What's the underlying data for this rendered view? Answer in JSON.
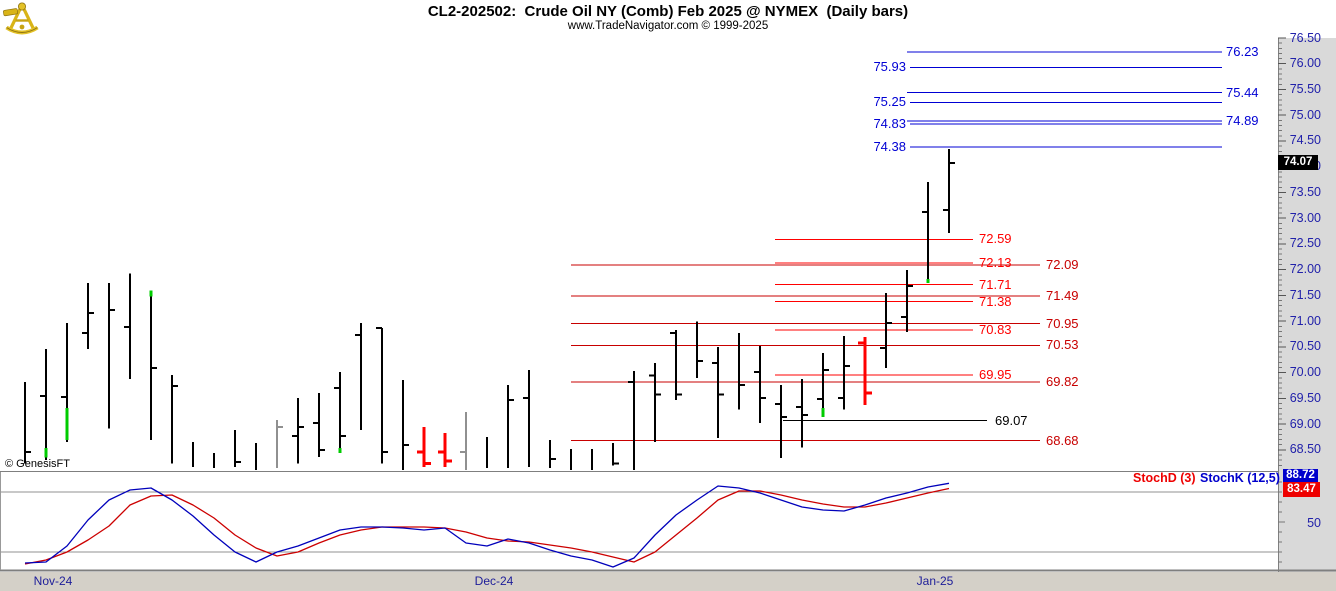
{
  "header": {
    "title": "CL2-202502:  Crude Oil NY (Comb) Feb 2025 @ NYMEX  (Daily bars)",
    "subtitle": "www.TradeNavigator.com © 1999-2025"
  },
  "watermark": "© GenesisFT",
  "logo": "sextant-icon",
  "colors": {
    "blue_level": "#0000d4",
    "red_bright": "#ff0000",
    "red_dark": "#c80000",
    "black_level": "#000000",
    "axis_text": "#2121aa",
    "bar_black": "#000000",
    "bar_red": "#ff0000",
    "bar_gray": "#909090",
    "bar_green": "#00cc00",
    "stoch_k": "#0000bb",
    "stoch_d": "#cc0000",
    "grid": "#909090",
    "border": "#7f7f7f"
  },
  "chart_data": {
    "type": "bar",
    "subtype": "ohlc-daily-bars-with-stochastic",
    "title": "CL2-202502:  Crude Oil NY (Comb) Feb 2025 @ NYMEX  (Daily bars)",
    "price_axis": {
      "ylim": [
        68.08,
        76.5
      ],
      "tick_labels": [
        "76.50",
        "76.00",
        "75.50",
        "75.00",
        "74.50",
        "74.00",
        "73.50",
        "73.00",
        "72.50",
        "72.00",
        "71.50",
        "71.00",
        "70.50",
        "70.00",
        "69.50",
        "69.00",
        "68.50"
      ],
      "minor_step": 0.1,
      "last_price": "74.07",
      "last_price_value": 74.07
    },
    "x_axis": {
      "labels": [
        {
          "text": "Nov-24",
          "x": 53
        },
        {
          "text": "Dec-24",
          "x": 494
        },
        {
          "text": "Jan-25",
          "x": 935
        }
      ]
    },
    "levels": {
      "blue_left": [
        {
          "price": 75.93,
          "label": "75.93"
        },
        {
          "price": 75.25,
          "label": "75.25"
        },
        {
          "price": 74.83,
          "label": "74.83"
        },
        {
          "price": 74.38,
          "label": "74.38"
        }
      ],
      "blue_right": [
        {
          "price": 76.23,
          "label": "76.23"
        },
        {
          "price": 75.44,
          "label": "75.44"
        },
        {
          "price": 74.89,
          "label": "74.89"
        }
      ],
      "red_short": [
        {
          "price": 72.59,
          "label": "72.59"
        },
        {
          "price": 72.13,
          "label": "72.13"
        },
        {
          "price": 71.71,
          "label": "71.71"
        },
        {
          "price": 71.38,
          "label": "71.38"
        },
        {
          "price": 70.83,
          "label": "70.83"
        },
        {
          "price": 69.95,
          "label": "69.95"
        }
      ],
      "red_long": [
        {
          "price": 72.09,
          "label": "72.09"
        },
        {
          "price": 71.49,
          "label": "71.49"
        },
        {
          "price": 70.95,
          "label": "70.95"
        },
        {
          "price": 70.53,
          "label": "70.53"
        },
        {
          "price": 69.82,
          "label": "69.82"
        },
        {
          "price": 68.68,
          "label": "68.68"
        }
      ],
      "black": [
        {
          "price": 69.07,
          "label": "69.07"
        }
      ]
    },
    "bars": [
      {
        "h": 69.82,
        "l": 68.24,
        "c": 68.46
      },
      {
        "h": 70.46,
        "l": 68.3,
        "o": 69.55,
        "g": [
          68.35,
          68.54
        ]
      },
      {
        "h": 70.96,
        "l": 68.65,
        "o": 69.53,
        "g": [
          68.69,
          69.31
        ]
      },
      {
        "h": 71.74,
        "l": 70.46,
        "o": 70.77,
        "c": 71.16
      },
      {
        "h": 71.74,
        "l": 68.92,
        "c": 71.22
      },
      {
        "h": 71.93,
        "l": 69.88,
        "o": 70.89
      },
      {
        "h": 71.6,
        "l": 68.69,
        "c": 70.09,
        "g": [
          71.48,
          71.6
        ]
      },
      {
        "h": 69.95,
        "l": 68.24,
        "c": 69.74
      },
      {
        "h": 68.65,
        "l": 68.17
      },
      {
        "h": 68.44,
        "l": 68.15
      },
      {
        "h": 68.89,
        "l": 68.17,
        "c": 68.26
      },
      {
        "h": 68.63,
        "l": 68.11
      },
      {
        "h": 69.08,
        "l": 68.15,
        "c": 68.94,
        "col": "gray"
      },
      {
        "h": 69.51,
        "l": 68.24,
        "o": 68.77,
        "c": 68.94
      },
      {
        "h": 69.6,
        "l": 68.36,
        "o": 69.02,
        "c": 68.5
      },
      {
        "h": 70.01,
        "l": 68.44,
        "o": 69.7,
        "c": 68.77,
        "g": [
          68.44,
          68.54
        ]
      },
      {
        "h": 70.96,
        "l": 68.89,
        "o": 70.73
      },
      {
        "h": 70.87,
        "l": 68.24,
        "o": 70.87,
        "c": 68.46
      },
      {
        "h": 69.86,
        "l": 68.11,
        "c": 68.59
      },
      {
        "h": 68.94,
        "l": 68.17,
        "o": 68.46,
        "c": 68.24,
        "col": "red"
      },
      {
        "h": 68.83,
        "l": 68.17,
        "o": 68.46,
        "c": 68.28,
        "col": "red"
      },
      {
        "h": 69.24,
        "l": 68.11,
        "o": 68.46,
        "col": "gray"
      },
      {
        "h": 68.75,
        "l": 68.15
      },
      {
        "h": 69.76,
        "l": 68.15,
        "c": 69.47
      },
      {
        "h": 70.05,
        "l": 68.17,
        "o": 69.51
      },
      {
        "h": 68.69,
        "l": 68.15,
        "c": 68.32
      },
      {
        "h": 68.52,
        "l": 68.11
      },
      {
        "h": 68.52,
        "l": 68.11
      },
      {
        "h": 68.63,
        "l": 68.2,
        "c": 68.24
      },
      {
        "h": 70.03,
        "l": 68.11,
        "o": 69.82
      },
      {
        "h": 70.19,
        "l": 68.65,
        "o": 69.94,
        "c": 69.58
      },
      {
        "h": 70.83,
        "l": 69.47,
        "o": 70.77,
        "c": 69.58
      },
      {
        "h": 70.99,
        "l": 69.9,
        "c": 70.23
      },
      {
        "h": 70.5,
        "l": 68.73,
        "o": 70.19,
        "c": 69.58
      },
      {
        "h": 70.77,
        "l": 69.28,
        "c": 69.76
      },
      {
        "h": 70.52,
        "l": 69.02,
        "o": 70.01,
        "c": 69.51
      },
      {
        "h": 69.76,
        "l": 68.34,
        "o": 69.39,
        "c": 69.14
      },
      {
        "h": 69.88,
        "l": 68.55,
        "o": 69.33,
        "c": 69.18
      },
      {
        "h": 70.38,
        "l": 69.14,
        "o": 69.49,
        "c": 70.05,
        "g": [
          69.14,
          69.31
        ]
      },
      {
        "h": 70.71,
        "l": 69.28,
        "o": 69.51,
        "c": 70.13
      },
      {
        "h": 70.69,
        "l": 69.37,
        "o": 70.58,
        "c": 69.6,
        "col": "red"
      },
      {
        "h": 71.55,
        "l": 70.09,
        "o": 70.48,
        "c": 70.96
      },
      {
        "h": 71.99,
        "l": 70.79,
        "o": 71.08,
        "c": 71.68
      },
      {
        "h": 73.7,
        "l": 71.74,
        "o": 73.12,
        "g": [
          71.74,
          71.82
        ]
      },
      {
        "h": 74.34,
        "l": 72.71,
        "o": 73.16,
        "c": 74.07
      }
    ],
    "stoch": {
      "d_label": "StochD (3)",
      "k_label": "StochK (12,5)",
      "k_value": "88.72",
      "d_value": "83.47",
      "axis_label": "50",
      "gridlines": [
        80,
        20
      ],
      "ylim": [
        0,
        100
      ],
      "k": [
        9,
        10,
        26,
        52,
        72,
        82,
        84,
        72,
        56,
        37,
        20,
        10,
        20,
        26,
        34,
        42,
        45,
        45,
        44,
        42,
        44,
        29,
        26,
        33,
        29,
        22,
        16,
        12,
        5,
        14,
        37,
        57,
        72,
        86,
        84,
        79,
        72,
        65,
        62,
        61,
        67,
        74,
        79,
        85,
        88.7
      ],
      "d": [
        8,
        12,
        20,
        32,
        46,
        67,
        76,
        77,
        67,
        54,
        37,
        24,
        16,
        20,
        29,
        37,
        42,
        45,
        45,
        45,
        44,
        40,
        34,
        31,
        30,
        27,
        24,
        20,
        15,
        10,
        20,
        37,
        54,
        72,
        81,
        81,
        77,
        72,
        68,
        65,
        65,
        69,
        74,
        79,
        83.5
      ]
    }
  }
}
